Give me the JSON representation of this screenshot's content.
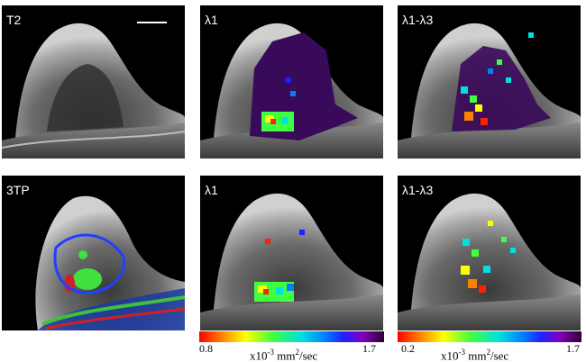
{
  "panels": {
    "t2": {
      "label": "T2"
    },
    "l1_top": {
      "label": "λ1"
    },
    "l13_top": {
      "label": "λ1-λ3"
    },
    "tp3": {
      "label": "3TP"
    },
    "l1_bottom": {
      "label": "λ1"
    },
    "l13_bottom": {
      "label": "λ1-λ3"
    }
  },
  "colorbars": {
    "left": {
      "min": "0.8",
      "max": "1.7",
      "unit_prefix": "x10",
      "unit_exp": "-3",
      "unit_mid": " mm",
      "unit_exp2": "2",
      "unit_suffix": "/sec"
    },
    "right": {
      "min": "0.2",
      "max": "1.7",
      "unit_prefix": "x10",
      "unit_exp": "-3",
      "unit_mid": " mm",
      "unit_exp2": "2",
      "unit_suffix": "/sec"
    }
  },
  "colors": {
    "background": "#ffffff",
    "panel_bg": "#000000",
    "label_text": "#ffffff",
    "tissue_overlay_purple": "#3a0a5a"
  }
}
